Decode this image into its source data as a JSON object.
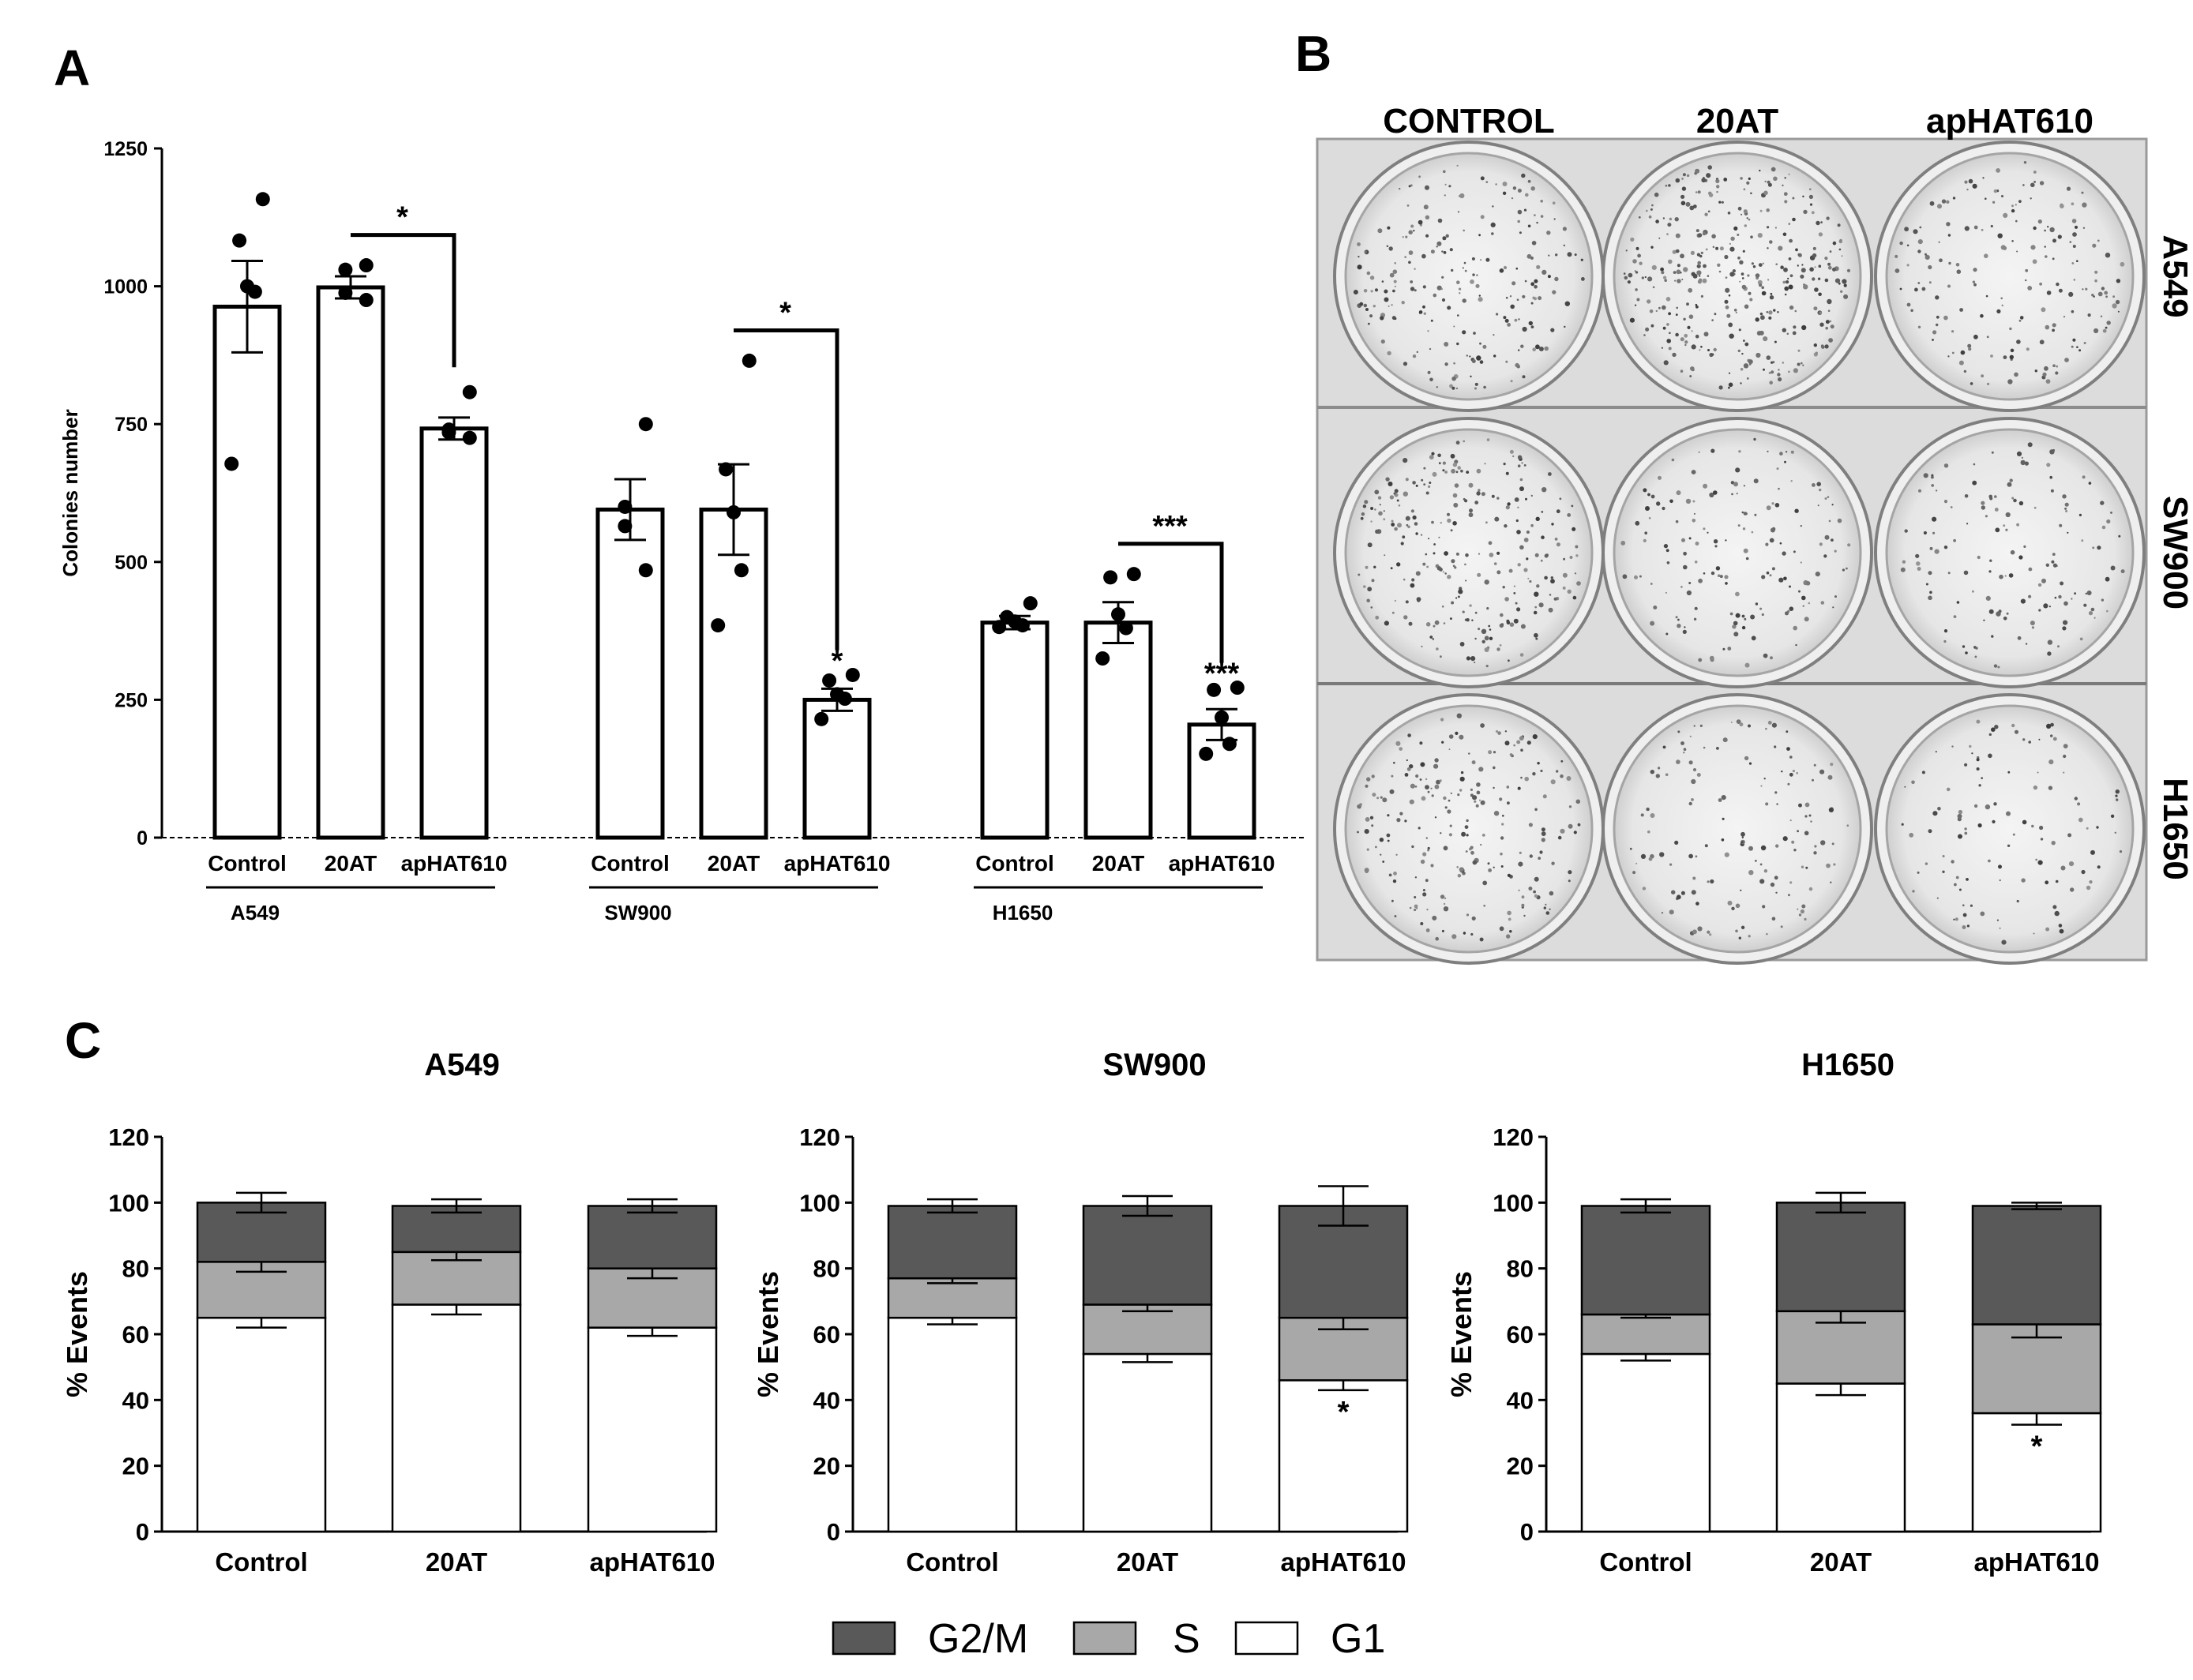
{
  "panel_labels": {
    "a": "A",
    "b": "B",
    "c": "C"
  },
  "colors": {
    "g2m": "#595959",
    "s": "#a8a8a8",
    "g1": "#ffffff",
    "ink": "#000000"
  },
  "chart_data": [
    {
      "type": "bar",
      "panel": "A",
      "title": "",
      "ylabel": "Colonies number",
      "ylim": [
        0,
        1250
      ],
      "yticks": [
        "0",
        "250",
        "500",
        "750",
        "1000",
        "1250"
      ],
      "categories": [
        "Control",
        "20AT",
        "apHAT610"
      ],
      "groups": [
        {
          "name": "A549",
          "bars": [
            {
              "category": "Control",
              "mean": 963,
              "sem": 83,
              "points": [
                1158,
                1083,
                1000,
                990,
                678
              ]
            },
            {
              "category": "20AT",
              "mean": 998,
              "sem": 20,
              "points": [
                1038,
                1030,
                988,
                975
              ]
            },
            {
              "category": "apHAT610",
              "mean": 742,
              "sem": 20,
              "points": [
                808,
                740,
                735,
                725
              ]
            }
          ],
          "brackets": [
            {
              "from": "20AT",
              "to": "apHAT610",
              "label": "*"
            }
          ],
          "bar_stars": []
        },
        {
          "name": "SW900",
          "bars": [
            {
              "category": "Control",
              "mean": 595,
              "sem": 55,
              "points": [
                750,
                600,
                565,
                485
              ]
            },
            {
              "category": "20AT",
              "mean": 595,
              "sem": 82,
              "points": [
                865,
                668,
                590,
                485,
                385
              ]
            },
            {
              "category": "apHAT610",
              "mean": 250,
              "sem": 20,
              "points": [
                295,
                285,
                260,
                252,
                215
              ]
            }
          ],
          "brackets": [
            {
              "from": "20AT",
              "to": "apHAT610",
              "label": "*"
            }
          ],
          "bar_stars": [
            {
              "category": "apHAT610",
              "label": "*"
            }
          ]
        },
        {
          "name": "H1650",
          "bars": [
            {
              "category": "Control",
              "mean": 390,
              "sem": 12,
              "points": [
                425,
                400,
                392,
                385,
                382
              ]
            },
            {
              "category": "20AT",
              "mean": 390,
              "sem": 37,
              "points": [
                478,
                472,
                405,
                380,
                325
              ]
            },
            {
              "category": "apHAT610",
              "mean": 205,
              "sem": 28,
              "points": [
                272,
                268,
                218,
                170,
                152
              ]
            }
          ],
          "brackets": [
            {
              "from": "20AT",
              "to": "apHAT610",
              "label": "***"
            }
          ],
          "bar_stars": [
            {
              "category": "apHAT610",
              "label": "***"
            }
          ]
        }
      ]
    },
    {
      "type": "image",
      "panel": "B",
      "column_labels": [
        "CONTROL",
        "20AT",
        "apHAT610"
      ],
      "row_labels": [
        "A549",
        "SW900",
        "H1650"
      ],
      "colony_density": [
        [
          0.55,
          0.9,
          0.45
        ],
        [
          0.65,
          0.4,
          0.35
        ],
        [
          0.55,
          0.35,
          0.28
        ]
      ]
    },
    {
      "type": "stacked_bar",
      "panel": "C",
      "ylabel": "% Events",
      "ylim": [
        0,
        120
      ],
      "yticks": [
        "0",
        "20",
        "40",
        "60",
        "80",
        "100",
        "120"
      ],
      "categories": [
        "Control",
        "20AT",
        "apHAT610"
      ],
      "legend": [
        "G2/M",
        "S",
        "G1"
      ],
      "charts": [
        {
          "title": "A549",
          "series": [
            {
              "name": "G1",
              "values": [
                65,
                69,
                62
              ],
              "err": [
                3,
                3,
                2.5
              ]
            },
            {
              "name": "S",
              "values": [
                17,
                16,
                18
              ],
              "err": [
                3,
                2.5,
                3
              ]
            },
            {
              "name": "G2/M",
              "values": [
                18,
                14,
                19
              ],
              "err": [
                3,
                2,
                2
              ]
            }
          ],
          "stars": []
        },
        {
          "title": "SW900",
          "series": [
            {
              "name": "G1",
              "values": [
                65,
                54,
                46
              ],
              "err": [
                2,
                2.5,
                3
              ]
            },
            {
              "name": "S",
              "values": [
                12,
                15,
                19
              ],
              "err": [
                1.5,
                2,
                3.5
              ]
            },
            {
              "name": "G2/M",
              "values": [
                22,
                30,
                34
              ],
              "err": [
                2,
                3,
                6
              ]
            }
          ],
          "stars": [
            {
              "category": "apHAT610",
              "label": "*"
            }
          ]
        },
        {
          "title": "H1650",
          "series": [
            {
              "name": "G1",
              "values": [
                54,
                45,
                36
              ],
              "err": [
                2,
                3.5,
                3.5
              ]
            },
            {
              "name": "S",
              "values": [
                12,
                22,
                27
              ],
              "err": [
                1,
                3.5,
                4
              ]
            },
            {
              "name": "G2/M",
              "values": [
                33,
                33,
                36
              ],
              "err": [
                2,
                3,
                1
              ]
            }
          ],
          "stars": [
            {
              "category": "apHAT610",
              "label": "*"
            }
          ]
        }
      ]
    }
  ]
}
